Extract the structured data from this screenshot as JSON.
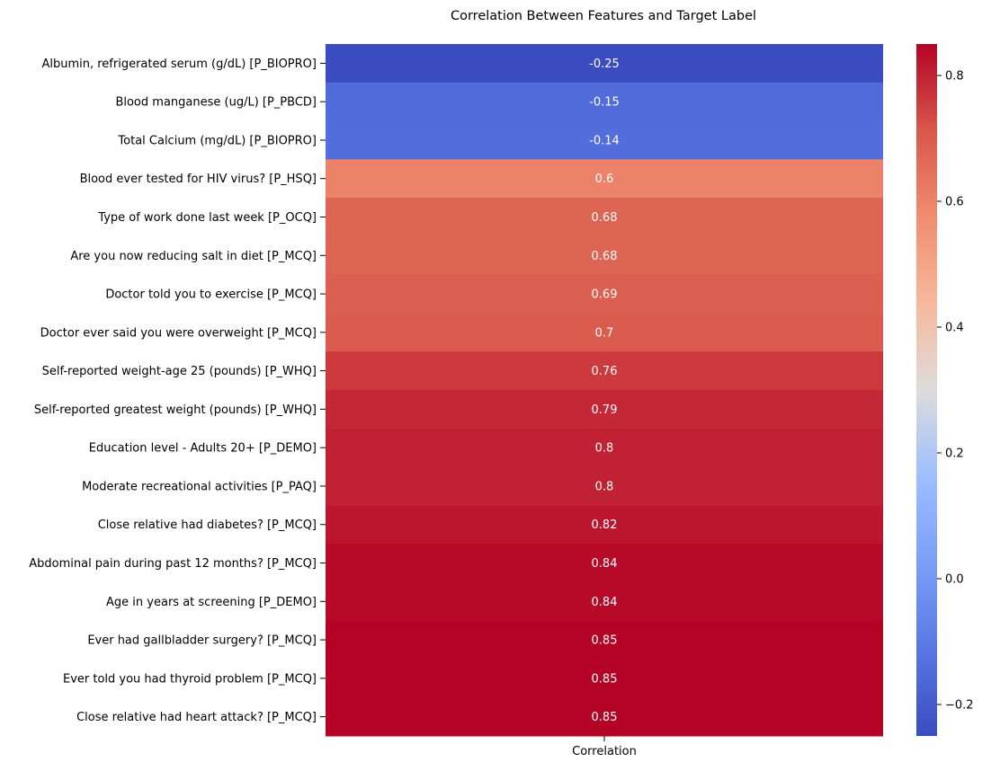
{
  "chart_data": {
    "type": "heatmap",
    "title": "Correlation Between Features and Target Label",
    "column_label": "Correlation",
    "colormap": "coolwarm",
    "color_range": [
      -0.25,
      0.85
    ],
    "colorbar_ticks": [
      -0.2,
      0.0,
      0.2,
      0.4,
      0.6,
      0.8
    ],
    "colorbar_tick_labels": [
      "−0.2",
      "0.0",
      "0.2",
      "0.4",
      "0.6",
      "0.8"
    ],
    "rows": [
      {
        "label": "Albumin, refrigerated serum (g/dL) [P_BIOPRO]",
        "value": -0.25,
        "text": "-0.25"
      },
      {
        "label": "Blood manganese (ug/L) [P_PBCD]",
        "value": -0.15,
        "text": "-0.15"
      },
      {
        "label": "Total Calcium (mg/dL) [P_BIOPRO]",
        "value": -0.14,
        "text": "-0.14"
      },
      {
        "label": "Blood ever tested for HIV virus? [P_HSQ]",
        "value": 0.6,
        "text": "0.6"
      },
      {
        "label": "Type of work done last week [P_OCQ]",
        "value": 0.68,
        "text": "0.68"
      },
      {
        "label": "Are you now reducing salt in diet [P_MCQ]",
        "value": 0.68,
        "text": "0.68"
      },
      {
        "label": "Doctor told you to exercise [P_MCQ]",
        "value": 0.69,
        "text": "0.69"
      },
      {
        "label": "Doctor ever said you were overweight [P_MCQ]",
        "value": 0.7,
        "text": "0.7"
      },
      {
        "label": "Self-reported weight-age 25 (pounds) [P_WHQ]",
        "value": 0.76,
        "text": "0.76"
      },
      {
        "label": "Self-reported greatest weight (pounds) [P_WHQ]",
        "value": 0.79,
        "text": "0.79"
      },
      {
        "label": "Education level - Adults 20+ [P_DEMO]",
        "value": 0.8,
        "text": "0.8"
      },
      {
        "label": "Moderate recreational activities [P_PAQ]",
        "value": 0.8,
        "text": "0.8"
      },
      {
        "label": "Close relative had diabetes? [P_MCQ]",
        "value": 0.82,
        "text": "0.82"
      },
      {
        "label": "Abdominal pain during past 12 months? [P_MCQ]",
        "value": 0.84,
        "text": "0.84"
      },
      {
        "label": "Age in years at screening [P_DEMO]",
        "value": 0.84,
        "text": "0.84"
      },
      {
        "label": "Ever had gallbladder surgery? [P_MCQ]",
        "value": 0.85,
        "text": "0.85"
      },
      {
        "label": "Ever told you had thyroid problem [P_MCQ]",
        "value": 0.85,
        "text": "0.85"
      },
      {
        "label": "Close relative had heart attack? [P_MCQ]",
        "value": 0.85,
        "text": "0.85"
      }
    ]
  }
}
